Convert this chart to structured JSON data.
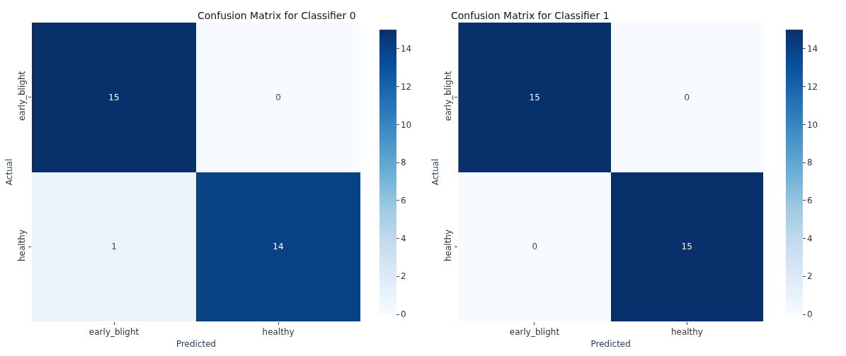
{
  "chart_data": [
    {
      "type": "heatmap",
      "title": "Confusion Matrix for Classifier 0",
      "xlabel": "Predicted",
      "ylabel": "Actual",
      "categories": [
        "early_blight",
        "healthy"
      ],
      "y_categories": [
        "early_blight",
        "healthy"
      ],
      "cells": [
        [
          15,
          0
        ],
        [
          1,
          14
        ]
      ],
      "data_labels": true,
      "clim": [
        0,
        15
      ],
      "cticks": [
        0,
        2,
        4,
        6,
        8,
        10,
        12,
        14
      ]
    },
    {
      "type": "heatmap",
      "title": "Confusion Matrix for Classifier 1",
      "xlabel": "Predicted",
      "ylabel": "Actual",
      "categories": [
        "early_blight",
        "healthy"
      ],
      "y_categories": [
        "early_blight",
        "healthy"
      ],
      "cells": [
        [
          15,
          0
        ],
        [
          0,
          15
        ]
      ],
      "data_labels": true,
      "clim": [
        0,
        15
      ],
      "cticks": [
        0,
        2,
        4,
        6,
        8,
        10,
        12,
        14
      ]
    }
  ]
}
